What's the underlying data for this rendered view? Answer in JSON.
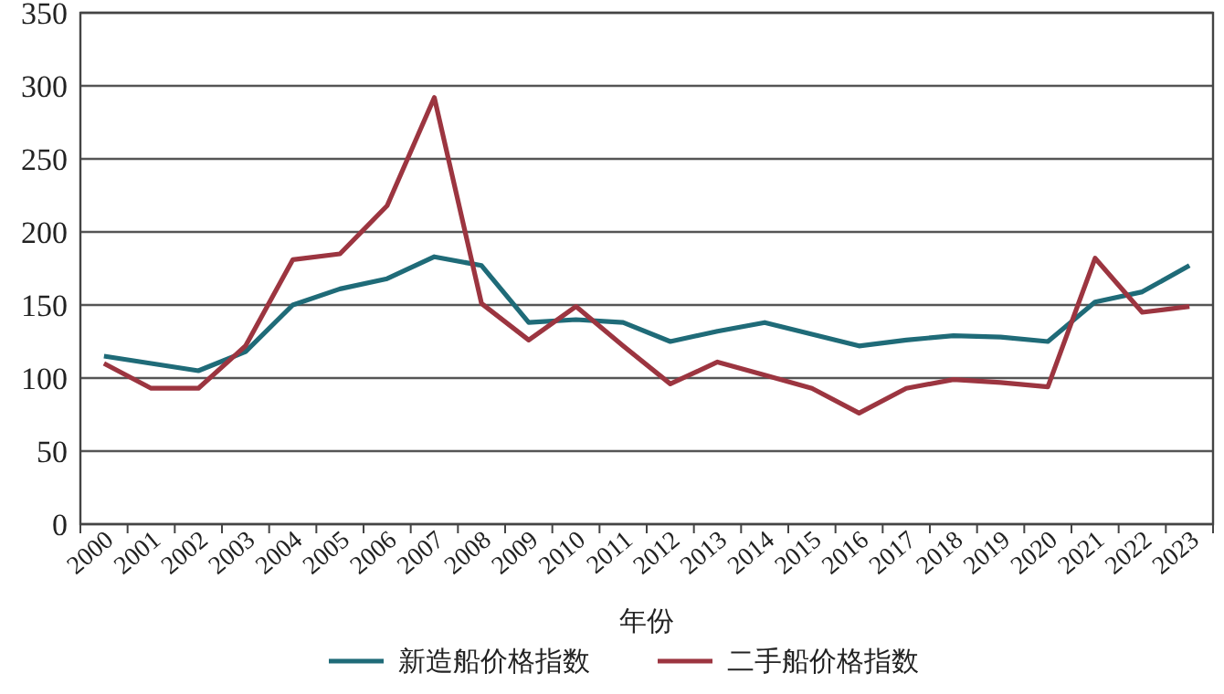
{
  "chart_data": {
    "type": "line",
    "xlabel": "年份",
    "categories": [
      "2000",
      "2001",
      "2002",
      "2003",
      "2004",
      "2005",
      "2006",
      "2007",
      "2008",
      "2009",
      "2010",
      "2011",
      "2012",
      "2013",
      "2014",
      "2015",
      "2016",
      "2017",
      "2018",
      "2019",
      "2020",
      "2021",
      "2022",
      "2023"
    ],
    "series": [
      {
        "name": "新造船价格指数",
        "color": "#1f6b78",
        "values": [
          115,
          110,
          105,
          118,
          150,
          161,
          168,
          183,
          177,
          138,
          140,
          138,
          125,
          132,
          138,
          130,
          122,
          126,
          129,
          128,
          125,
          152,
          159,
          177
        ]
      },
      {
        "name": "二手船价格指数",
        "color": "#9c3540",
        "values": [
          110,
          93,
          93,
          122,
          181,
          185,
          218,
          292,
          151,
          126,
          149,
          122,
          96,
          111,
          102,
          93,
          76,
          93,
          99,
          97,
          94,
          182,
          145,
          149
        ]
      }
    ],
    "ylim": [
      0,
      350
    ],
    "yticks": [
      0,
      50,
      100,
      150,
      200,
      250,
      300,
      350
    ],
    "grid": "y",
    "legend": "bottom",
    "marker": "none",
    "line_style": "solid"
  }
}
